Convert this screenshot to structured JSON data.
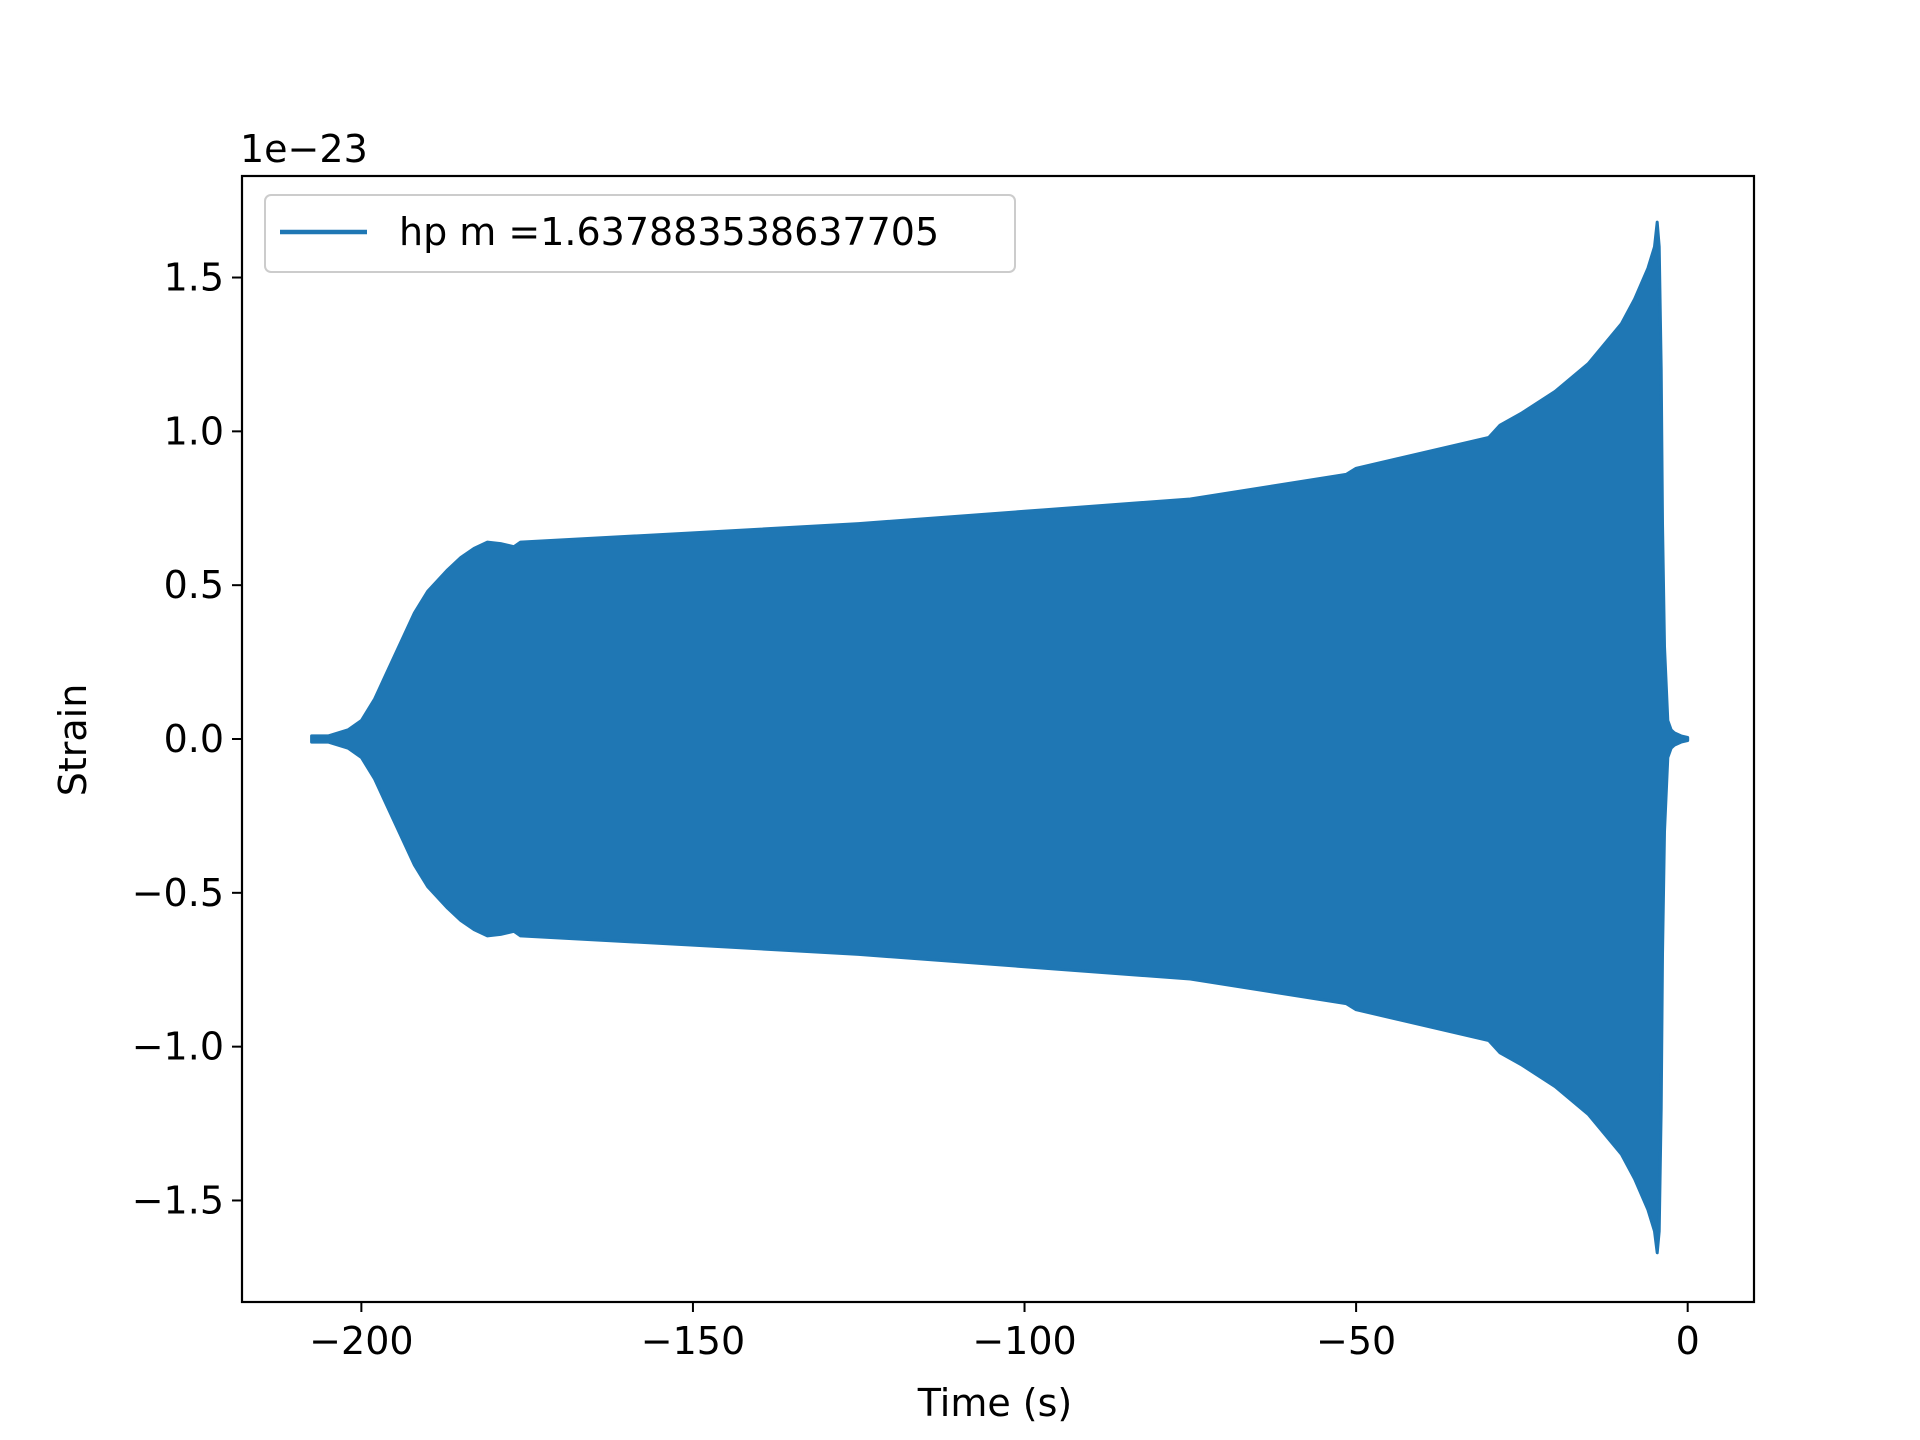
{
  "chart_data": {
    "type": "area",
    "title": "",
    "xlabel": "Time (s)",
    "ylabel": "Strain",
    "offset_label": "1e−23",
    "xlim": [
      -218,
      10
    ],
    "ylim": [
      -1.83,
      1.83
    ],
    "xticks": [
      -200,
      -150,
      -100,
      -50,
      0
    ],
    "xtick_labels": [
      "−200",
      "−150",
      "−100",
      "−50",
      "0"
    ],
    "yticks": [
      -1.5,
      -1.0,
      -0.5,
      0.0,
      0.5,
      1.0,
      1.5
    ],
    "ytick_labels": [
      "−1.5",
      "−1.0",
      "−0.5",
      "0.0",
      "0.5",
      "1.0",
      "1.5"
    ],
    "grid": false,
    "legend_position": "top-left",
    "series": [
      {
        "name": "hp m =1.637883538637705",
        "color": "#1f77b4",
        "envelope_x": [
          -207.5,
          -205,
          -202,
          -200,
          -198,
          -195,
          -192,
          -190,
          -187,
          -185,
          -183,
          -181,
          -179,
          -177,
          -176,
          -150,
          -125,
          -100,
          -75,
          -51.5,
          -50,
          -30,
          -28.3,
          -25,
          -20,
          -15,
          -10,
          -8,
          -6,
          -5,
          -4.6,
          -4.3,
          -4.0,
          -3.8,
          -3.5,
          -3,
          -2.5,
          -2,
          -1,
          0
        ],
        "envelope_upper": [
          0.01,
          0.01,
          0.03,
          0.06,
          0.13,
          0.27,
          0.41,
          0.48,
          0.55,
          0.59,
          0.62,
          0.64,
          0.635,
          0.625,
          0.64,
          0.67,
          0.7,
          0.74,
          0.78,
          0.86,
          0.88,
          0.98,
          1.02,
          1.06,
          1.13,
          1.22,
          1.35,
          1.43,
          1.53,
          1.6,
          1.68,
          1.6,
          1.2,
          0.7,
          0.3,
          0.06,
          0.03,
          0.02,
          0.01,
          0.005
        ],
        "envelope_lower": [
          -0.01,
          -0.01,
          -0.03,
          -0.06,
          -0.13,
          -0.27,
          -0.41,
          -0.48,
          -0.55,
          -0.59,
          -0.62,
          -0.64,
          -0.635,
          -0.625,
          -0.64,
          -0.67,
          -0.7,
          -0.74,
          -0.78,
          -0.86,
          -0.88,
          -0.98,
          -1.02,
          -1.06,
          -1.13,
          -1.22,
          -1.35,
          -1.43,
          -1.53,
          -1.6,
          -1.67,
          -1.6,
          -1.2,
          -0.7,
          -0.3,
          -0.06,
          -0.03,
          -0.02,
          -0.01,
          -0.005
        ]
      }
    ]
  }
}
